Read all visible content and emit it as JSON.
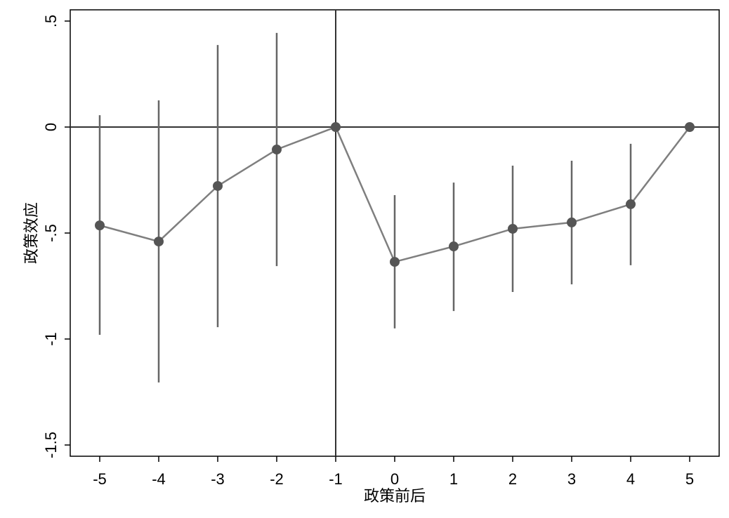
{
  "chart_data": {
    "type": "errorbar-line",
    "x_label": "政策前后",
    "y_label": "政策效应",
    "x": [
      -5,
      -4,
      -3,
      -2,
      -1,
      0,
      1,
      2,
      3,
      4,
      5
    ],
    "series": [
      {
        "values": [
          -0.464,
          -0.54,
          -0.278,
          -0.106,
          0,
          -0.636,
          -0.563,
          -0.48,
          -0.45,
          -0.364,
          0
        ],
        "lower": [
          -0.98,
          -1.205,
          -0.944,
          -0.656,
          null,
          -0.95,
          -0.868,
          -0.778,
          -0.742,
          -0.652,
          null
        ],
        "upper": [
          0.056,
          0.126,
          0.387,
          0.444,
          null,
          -0.321,
          -0.262,
          -0.182,
          -0.159,
          -0.079,
          null
        ],
        "color": "#7f7f7f",
        "marker_color": "#555555",
        "ci_color": "#666666"
      }
    ],
    "xlim": [
      -5.5,
      5.5
    ],
    "ylim": [
      -1.553,
      0.553
    ],
    "xticks": [
      -5,
      -4,
      -3,
      -2,
      -1,
      0,
      1,
      2,
      3,
      4,
      5
    ],
    "yticks": [
      {
        "value": 0.5,
        "label": ".5"
      },
      0,
      {
        "value": -0.5,
        "label": "-.5"
      },
      -1,
      -1.5
    ],
    "vlines": [
      -1
    ],
    "hlines": [
      0
    ]
  }
}
